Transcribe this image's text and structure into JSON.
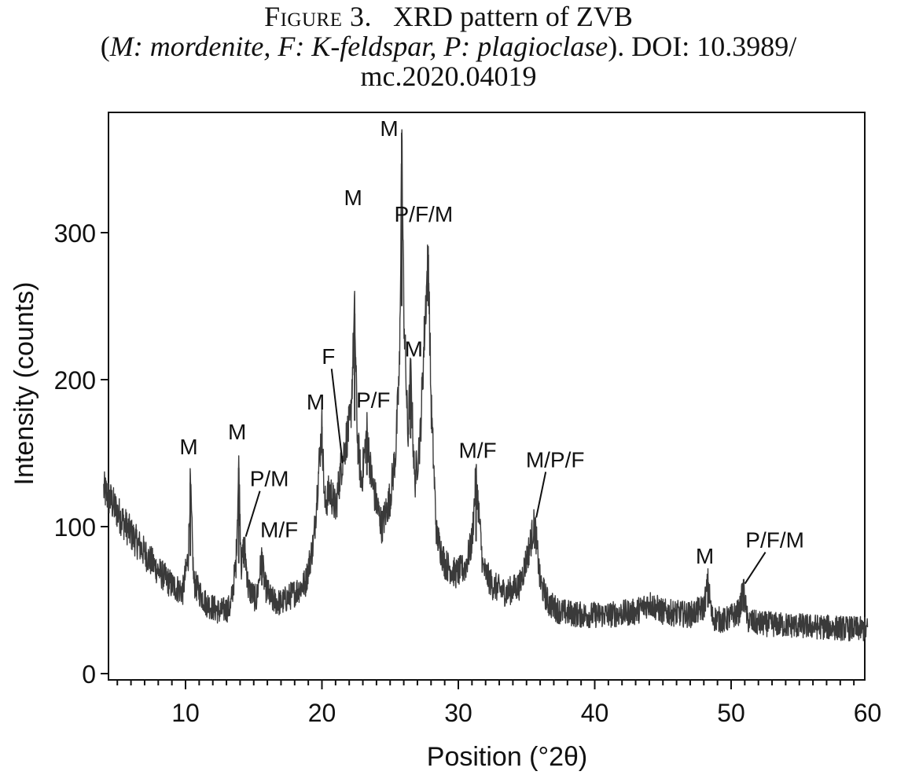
{
  "caption": {
    "figure_label": "Figure 3.",
    "title": "XRD pattern of ZVB",
    "legend_open": "(",
    "legend_text": "M: mordenite, F: K-feldspar, P: plagioclase",
    "legend_close": ").",
    "doi_line1": "DOI: 10.3989/",
    "doi_line2": "mc.2020.04019"
  },
  "chart_data": {
    "type": "line",
    "xlabel": "Position (°2θ)",
    "ylabel": "Intensity (counts)",
    "xlim": [
      4,
      60
    ],
    "ylim": [
      0,
      370
    ],
    "xticks": [
      10,
      20,
      30,
      40,
      50,
      60
    ],
    "yticks": [
      0,
      100,
      200,
      300
    ],
    "grid": false,
    "line_color": "#3a3a3a",
    "x": [
      4,
      4.5,
      5,
      6,
      7,
      8,
      9,
      9.8,
      10.2,
      10.35,
      10.6,
      11.5,
      12.5,
      13.3,
      13.7,
      13.9,
      14.1,
      14.3,
      14.6,
      15.2,
      15.6,
      15.8,
      16.3,
      17,
      18,
      18.8,
      19.4,
      19.85,
      20.0,
      20.2,
      20.6,
      21.0,
      21.4,
      21.8,
      22.1,
      22.4,
      22.6,
      22.9,
      23.3,
      23.6,
      23.9,
      24.4,
      25.0,
      25.4,
      25.7,
      25.85,
      26.0,
      26.3,
      26.5,
      26.8,
      27.2,
      27.6,
      27.8,
      28.0,
      28.4,
      29,
      29.8,
      30.5,
      31.0,
      31.3,
      31.8,
      32.5,
      33.5,
      34.5,
      35.2,
      35.6,
      36.0,
      36.6,
      37.5,
      39,
      41,
      43,
      44,
      45,
      47,
      48.0,
      48.3,
      48.6,
      49.5,
      50.6,
      50.9,
      51.2,
      52,
      54,
      56,
      58,
      60
    ],
    "y": [
      125,
      118,
      110,
      95,
      82,
      70,
      60,
      56,
      80,
      130,
      62,
      48,
      42,
      45,
      75,
      140,
      72,
      90,
      58,
      50,
      80,
      60,
      50,
      48,
      55,
      62,
      90,
      150,
      168,
      115,
      125,
      112,
      140,
      160,
      172,
      245,
      160,
      130,
      165,
      135,
      120,
      100,
      120,
      150,
      210,
      368,
      250,
      160,
      205,
      130,
      160,
      250,
      285,
      185,
      95,
      75,
      68,
      72,
      90,
      135,
      72,
      60,
      55,
      60,
      85,
      103,
      62,
      48,
      42,
      40,
      40,
      42,
      48,
      42,
      40,
      45,
      62,
      38,
      36,
      42,
      58,
      36,
      34,
      33,
      32,
      31,
      30
    ],
    "annotations": [
      {
        "label": "M",
        "x": 10.35,
        "y": 130
      },
      {
        "label": "M",
        "x": 13.9,
        "y": 140
      },
      {
        "label": "P/M",
        "x": 14.3,
        "y": 90
      },
      {
        "label": "M/F",
        "x": 15.6,
        "y": 80
      },
      {
        "label": "M",
        "x": 20.0,
        "y": 168
      },
      {
        "label": "F",
        "x": 21.4,
        "y": 140
      },
      {
        "label": "M",
        "x": 22.4,
        "y": 245
      },
      {
        "label": "P/F",
        "x": 23.3,
        "y": 165
      },
      {
        "label": "M",
        "x": 25.85,
        "y": 368
      },
      {
        "label": "M",
        "x": 26.5,
        "y": 205
      },
      {
        "label": "P/F/M",
        "x": 27.8,
        "y": 285
      },
      {
        "label": "M/F",
        "x": 31.3,
        "y": 135
      },
      {
        "label": "M/P/F",
        "x": 35.6,
        "y": 103
      },
      {
        "label": "M",
        "x": 48.3,
        "y": 62
      },
      {
        "label": "P/F/M",
        "x": 50.9,
        "y": 58
      }
    ]
  }
}
